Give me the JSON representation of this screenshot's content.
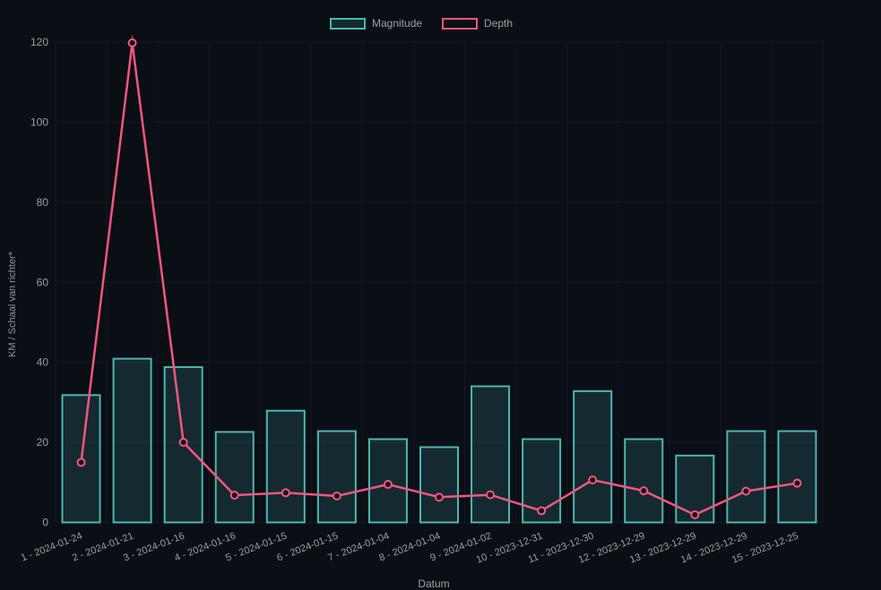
{
  "colors": {
    "background": "#0a0e15",
    "bar_border": "#4db6b2",
    "bar_fill": "rgba(75,192,192,0.16)",
    "line": "#f4567e",
    "point_fill": "#10131c",
    "text": "#9aa0a6",
    "grid": "rgba(255,255,255,0.045)"
  },
  "chart_data": {
    "type": "combo",
    "categories": [
      "1 - 2024-01-24",
      "2 - 2024-01-21",
      "3 - 2024-01-16",
      "4 - 2024-01-16",
      "5 - 2024-01-15",
      "6 - 2024-01-15",
      "7 - 2024-01-04",
      "8 - 2024-01-04",
      "9 - 2024-01-02",
      "10 - 2023-12-31",
      "11 - 2023-12-30",
      "12 - 2023-12-29",
      "13 - 2023-12-29",
      "14 - 2023-12-29",
      "15 - 2023-12-25"
    ],
    "series": [
      {
        "name": "Magnitude",
        "type": "bar",
        "values": [
          31.8,
          40.9,
          38.8,
          22.6,
          27.9,
          22.8,
          20.8,
          18.8,
          34.0,
          20.8,
          32.8,
          20.8,
          16.7,
          22.8,
          22.8
        ]
      },
      {
        "name": "Depth",
        "type": "line",
        "values": [
          15.0,
          119.8,
          20.0,
          6.8,
          7.4,
          6.6,
          9.5,
          6.3,
          6.9,
          2.9,
          10.6,
          7.9,
          1.9,
          7.8,
          9.8
        ]
      }
    ],
    "xlabel": "Datum",
    "ylabel": "KM / Schaal van richter*",
    "ylim": [
      0,
      120
    ],
    "yticks": [
      0,
      20,
      40,
      60,
      80,
      100,
      120
    ],
    "legend_position": "top",
    "grid": true
  }
}
